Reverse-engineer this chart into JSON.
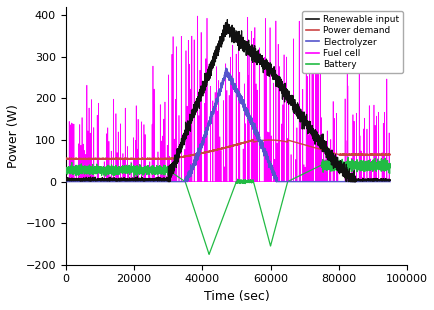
{
  "title": "",
  "xlabel": "Time (sec)",
  "ylabel": "Power (W)",
  "xlim": [
    0,
    100000
  ],
  "ylim": [
    -200,
    420
  ],
  "yticks": [
    -200,
    -100,
    0,
    100,
    200,
    300,
    400
  ],
  "xticks": [
    0,
    20000,
    40000,
    60000,
    80000,
    100000
  ],
  "legend_labels": [
    "Renewable input",
    "Power demand",
    "Electrolyzer",
    "Fuel cell",
    "Battery"
  ],
  "legend_colors": [
    "#111111",
    "#cc4444",
    "#5555cc",
    "#ff00ff",
    "#22bb44"
  ],
  "figsize": [
    4.35,
    3.1
  ],
  "dpi": 100
}
